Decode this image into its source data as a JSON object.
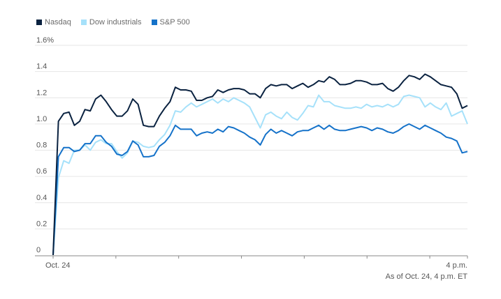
{
  "chart_data": {
    "type": "line",
    "title": "",
    "xlabel": "",
    "ylabel": "",
    "ylim": [
      0,
      1.6
    ],
    "y_ticks": [
      0,
      0.2,
      0.4,
      0.6,
      0.8,
      1.0,
      1.2,
      1.4,
      1.6
    ],
    "y_tick_labels": [
      "0",
      "0.2",
      "0.4",
      "0.6",
      "0.8",
      "1.0",
      "1.2",
      "1.4",
      "1.6%"
    ],
    "x_start_label": "Oct. 24",
    "x_end_label": "4 p.m.",
    "note": "As of Oct. 24, 4 p.m. ET",
    "legend": [
      "Nasdaq",
      "Dow industrials",
      "S&P 500"
    ],
    "colors": {
      "Nasdaq": "#0a2240",
      "Dow industrials": "#a6e1fa",
      "S&P 500": "#1572c9"
    },
    "points_per_series": 79,
    "series": [
      {
        "name": "Nasdaq",
        "values": [
          0,
          1.02,
          1.08,
          1.09,
          0.99,
          1.02,
          1.11,
          1.1,
          1.19,
          1.22,
          1.17,
          1.11,
          1.06,
          1.06,
          1.1,
          1.19,
          1.15,
          0.99,
          0.98,
          0.98,
          1.06,
          1.12,
          1.17,
          1.28,
          1.26,
          1.26,
          1.25,
          1.18,
          1.18,
          1.2,
          1.21,
          1.26,
          1.24,
          1.26,
          1.27,
          1.27,
          1.26,
          1.23,
          1.23,
          1.2,
          1.27,
          1.3,
          1.29,
          1.3,
          1.3,
          1.27,
          1.29,
          1.31,
          1.28,
          1.3,
          1.33,
          1.32,
          1.36,
          1.34,
          1.3,
          1.3,
          1.31,
          1.33,
          1.33,
          1.32,
          1.3,
          1.3,
          1.31,
          1.27,
          1.25,
          1.28,
          1.33,
          1.37,
          1.36,
          1.34,
          1.38,
          1.36,
          1.33,
          1.3,
          1.29,
          1.28,
          1.23,
          1.12,
          1.14
        ]
      },
      {
        "name": "Dow industrials",
        "values": [
          0,
          0.59,
          0.72,
          0.7,
          0.8,
          0.8,
          0.84,
          0.8,
          0.86,
          0.88,
          0.85,
          0.85,
          0.79,
          0.74,
          0.78,
          0.87,
          0.86,
          0.83,
          0.82,
          0.83,
          0.88,
          0.92,
          0.99,
          1.1,
          1.09,
          1.13,
          1.16,
          1.13,
          1.15,
          1.17,
          1.19,
          1.16,
          1.19,
          1.17,
          1.2,
          1.18,
          1.16,
          1.13,
          1.05,
          0.97,
          1.07,
          1.09,
          1.06,
          1.04,
          1.09,
          1.05,
          1.03,
          1.08,
          1.14,
          1.13,
          1.22,
          1.17,
          1.17,
          1.14,
          1.13,
          1.12,
          1.12,
          1.13,
          1.12,
          1.15,
          1.13,
          1.14,
          1.13,
          1.15,
          1.13,
          1.15,
          1.21,
          1.22,
          1.21,
          1.2,
          1.13,
          1.16,
          1.13,
          1.11,
          1.16,
          1.06,
          1.08,
          1.1,
          1.0
        ]
      },
      {
        "name": "S&P 500",
        "values": [
          0,
          0.75,
          0.82,
          0.82,
          0.79,
          0.8,
          0.85,
          0.85,
          0.91,
          0.91,
          0.86,
          0.83,
          0.77,
          0.76,
          0.79,
          0.87,
          0.84,
          0.75,
          0.75,
          0.76,
          0.83,
          0.86,
          0.91,
          0.99,
          0.96,
          0.96,
          0.96,
          0.91,
          0.93,
          0.94,
          0.93,
          0.96,
          0.94,
          0.98,
          0.97,
          0.95,
          0.93,
          0.9,
          0.88,
          0.84,
          0.92,
          0.96,
          0.93,
          0.95,
          0.93,
          0.91,
          0.94,
          0.95,
          0.95,
          0.97,
          0.99,
          0.96,
          0.99,
          0.96,
          0.95,
          0.95,
          0.96,
          0.97,
          0.98,
          0.97,
          0.95,
          0.97,
          0.96,
          0.94,
          0.93,
          0.95,
          0.98,
          1.0,
          0.98,
          0.96,
          0.99,
          0.97,
          0.95,
          0.93,
          0.9,
          0.89,
          0.87,
          0.78,
          0.79
        ]
      }
    ]
  }
}
